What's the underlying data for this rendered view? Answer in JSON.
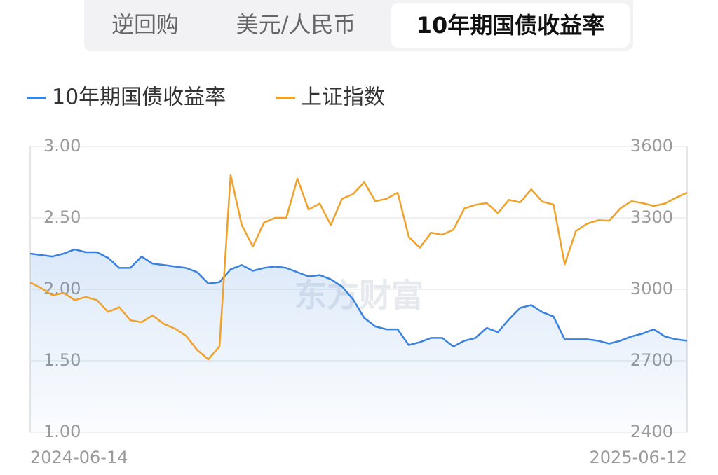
{
  "tabs": [
    "逆回购",
    "美元/人民币",
    "10年期国债收益率"
  ],
  "active_tab": 2,
  "watermark": "东方财富",
  "chart_data": {
    "type": "line",
    "categories": [
      "2024-06-14",
      null,
      null,
      null,
      null,
      null,
      null,
      null,
      null,
      null,
      null,
      null,
      null,
      null,
      null,
      null,
      null,
      null,
      null,
      null,
      null,
      null,
      null,
      null,
      null,
      null,
      null,
      null,
      null,
      null,
      null,
      null,
      null,
      null,
      null,
      null,
      null,
      null,
      null,
      null,
      null,
      null,
      null,
      null,
      null,
      null,
      null,
      null,
      null,
      null,
      null,
      null,
      null,
      null,
      null,
      null,
      null,
      null,
      null,
      "2025-06-12"
    ],
    "series": [
      {
        "name": "10年期国债收益率",
        "color": "#3a82e0",
        "values": [
          2.25,
          2.24,
          2.23,
          2.25,
          2.28,
          2.26,
          2.26,
          2.22,
          2.15,
          2.15,
          2.23,
          2.18,
          2.17,
          2.16,
          2.15,
          2.12,
          2.04,
          2.05,
          2.14,
          2.17,
          2.13,
          2.15,
          2.16,
          2.15,
          2.12,
          2.09,
          2.1,
          2.07,
          2.02,
          1.93,
          1.8,
          1.74,
          1.72,
          1.72,
          1.61,
          1.63,
          1.66,
          1.66,
          1.6,
          1.64,
          1.66,
          1.73,
          1.7,
          1.79,
          1.87,
          1.89,
          1.84,
          1.81,
          1.65,
          1.65,
          1.65,
          1.64,
          1.62,
          1.64,
          1.67,
          1.69,
          1.72,
          1.67,
          1.65,
          1.64
        ]
      },
      {
        "name": "上证指数",
        "color": "#f0a12a",
        "axis": "y2",
        "values": [
          3029,
          3005,
          2975,
          2985,
          2955,
          2968,
          2955,
          2905,
          2925,
          2870,
          2862,
          2890,
          2855,
          2835,
          2805,
          2745,
          2706,
          2760,
          3480,
          3270,
          3180,
          3280,
          3300,
          3300,
          3465,
          3335,
          3360,
          3270,
          3380,
          3400,
          3450,
          3370,
          3380,
          3406,
          3220,
          3175,
          3238,
          3229,
          3250,
          3340,
          3355,
          3362,
          3320,
          3376,
          3365,
          3420,
          3368,
          3356,
          3105,
          3244,
          3275,
          3290,
          3288,
          3340,
          3370,
          3362,
          3350,
          3360,
          3385,
          3406
        ]
      }
    ],
    "ylim": [
      1,
      3
    ],
    "yticks": [
      {
        "value": 1,
        "label": "1.00"
      },
      {
        "value": 1.5,
        "label": "1.50"
      },
      {
        "value": 2,
        "label": "2.00"
      },
      {
        "value": 2.5,
        "label": "2.50"
      },
      {
        "value": 3,
        "label": "3.00"
      }
    ],
    "y2lim": [
      2400,
      3600
    ],
    "y2ticks": [
      2400,
      2700,
      3000,
      3300,
      3600
    ],
    "grid": true,
    "legend": "top-left"
  }
}
